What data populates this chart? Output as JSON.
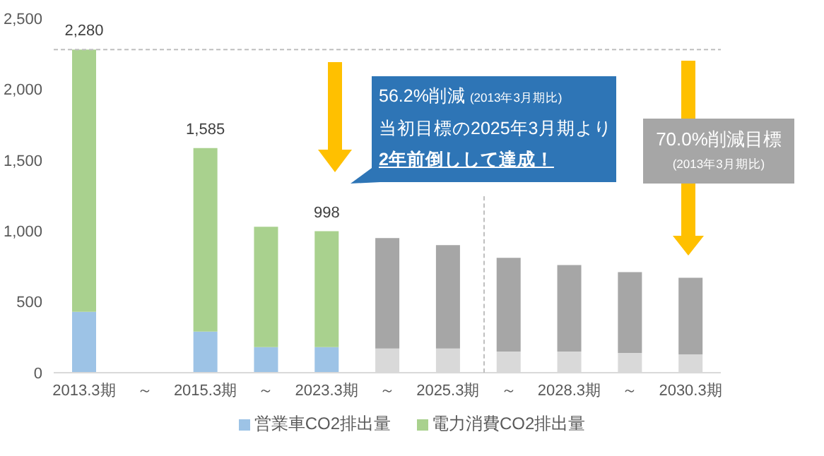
{
  "chart_data": {
    "type": "bar",
    "stacked": true,
    "categories": [
      "2013.3期",
      "～",
      "2015.3期",
      "～",
      "2023.3期",
      "～",
      "2025.3期",
      "～",
      "2028.3期",
      "～",
      "2030.3期"
    ],
    "series": [
      {
        "name": "営業車CO2排出量",
        "color": "#9dc3e6",
        "values": [
          430,
          null,
          290,
          180,
          180,
          null,
          null,
          null,
          null,
          null,
          null
        ]
      },
      {
        "name": "電力消費CO2排出量",
        "color": "#a9d18e",
        "values": [
          1850,
          null,
          1295,
          850,
          818,
          null,
          null,
          null,
          null,
          null,
          null
        ]
      },
      {
        "color": "#d9d9d9",
        "values": [
          null,
          null,
          null,
          null,
          null,
          170,
          170,
          150,
          150,
          140,
          130
        ]
      },
      {
        "color": "#a6a6a6",
        "values": [
          null,
          null,
          null,
          null,
          null,
          780,
          730,
          660,
          610,
          570,
          540
        ]
      }
    ],
    "totals": [
      "2,280",
      null,
      "1,585",
      null,
      "998",
      null,
      null,
      null,
      null,
      null,
      null
    ],
    "ylim": [
      0,
      2500
    ],
    "yticks": [
      0,
      {
        "value": 500,
        "label": "500"
      },
      {
        "value": 1000,
        "label": "1,000"
      },
      {
        "value": 1500,
        "label": "1,500"
      },
      {
        "value": 2000,
        "label": "2,000"
      },
      {
        "value": 2500,
        "label": "2,500"
      }
    ],
    "ref_lines": [
      {
        "axis": "y",
        "value": 2280,
        "color": "#bfbfbf",
        "line_style": "dashed"
      }
    ],
    "grid": false,
    "legend": "bottom",
    "annotations": [
      "56.2%削減",
      "(2013年3月期比)",
      "当初目標の2025年3月期より",
      "2年前倒しして達成！",
      "70.0%削減目標",
      "(2013年3月期比)"
    ]
  }
}
